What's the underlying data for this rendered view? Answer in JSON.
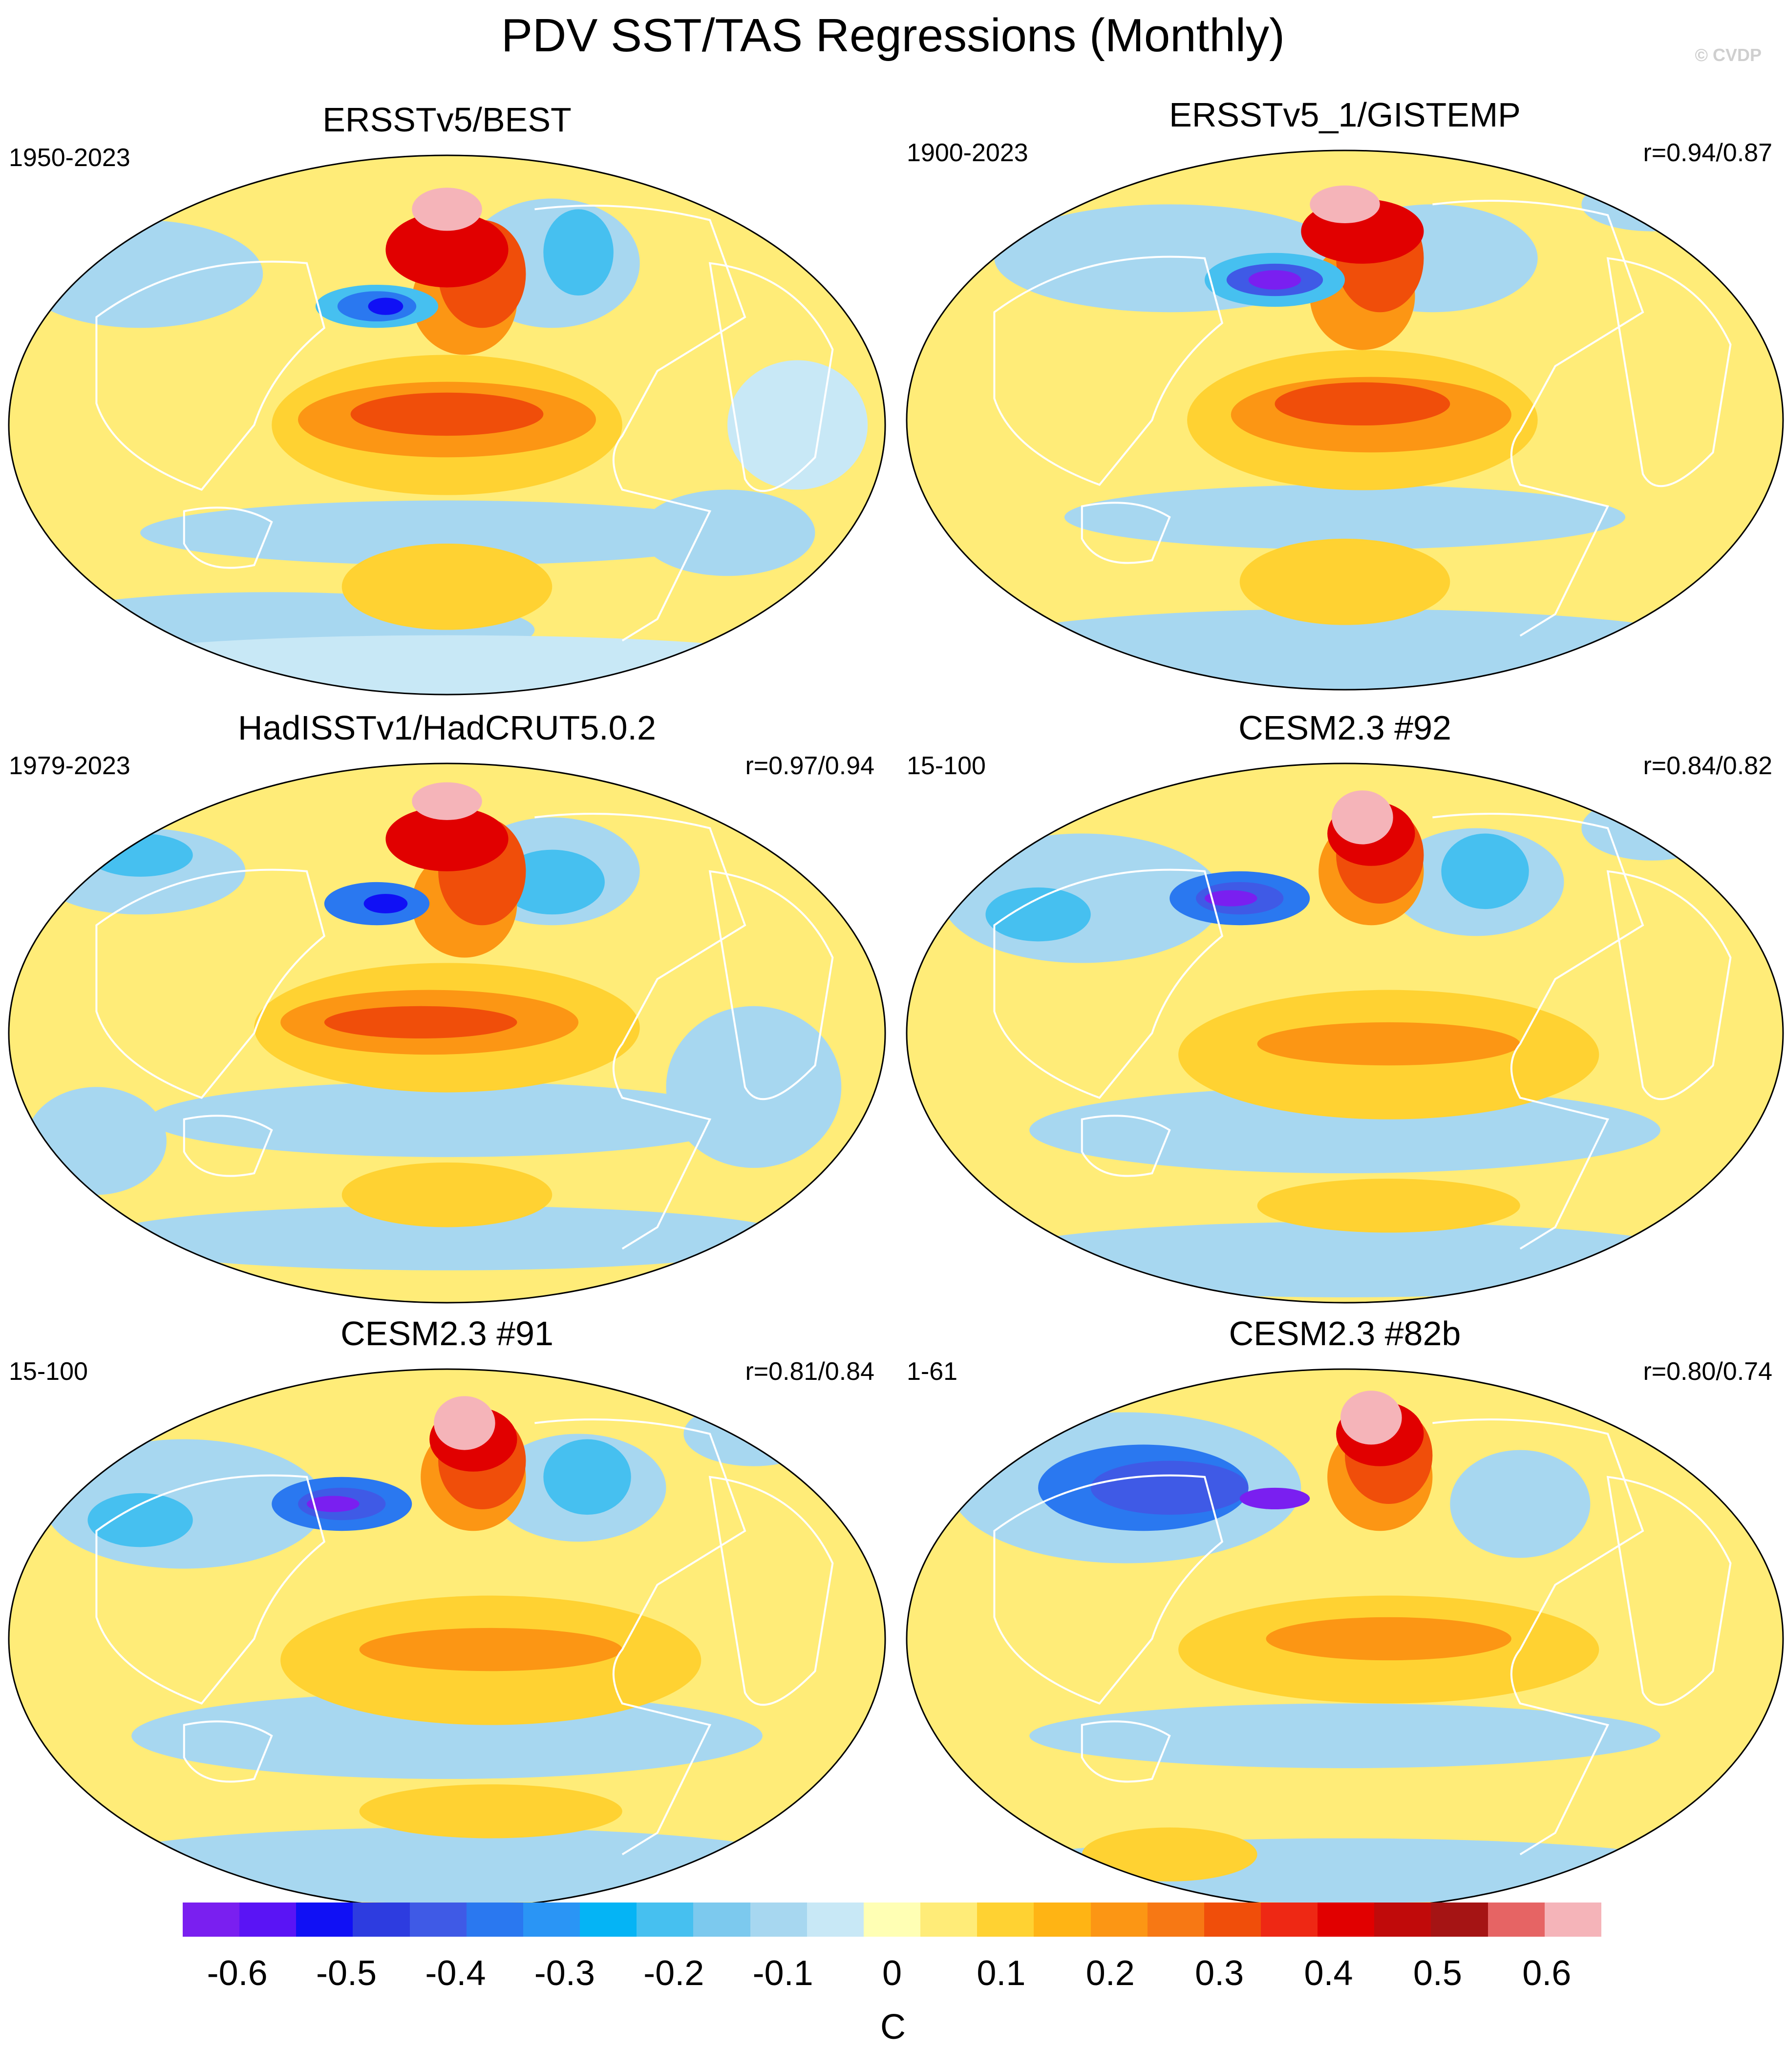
{
  "title": "PDV SST/TAS Regressions (Monthly)",
  "watermark": "© CVDP",
  "panels": [
    {
      "title": "ERSSTv5/BEST",
      "period": "1950-2023",
      "corr": "",
      "style": "obs1"
    },
    {
      "title": "ERSSTv5_1/GISTEMP",
      "period": "1900-2023",
      "corr": "r=0.94/0.87",
      "style": "obs2"
    },
    {
      "title": "HadISSTv1/HadCRUT5.0.2",
      "period": "1979-2023",
      "corr": "r=0.97/0.94",
      "style": "obs3"
    },
    {
      "title": "CESM2.3 #92",
      "period": "15-100",
      "corr": "r=0.84/0.82",
      "style": "model"
    },
    {
      "title": "CESM2.3 #91",
      "period": "15-100",
      "corr": "r=0.81/0.84",
      "style": "model"
    },
    {
      "title": "CESM2.3 #82b",
      "period": "1-61",
      "corr": "r=0.80/0.74",
      "style": "model2"
    }
  ],
  "colorbar": {
    "colors": [
      "#7a1ff0",
      "#5a14f5",
      "#1010f5",
      "#2d3ce0",
      "#3f5ae6",
      "#2a78f0",
      "#2a95f5",
      "#05b4f5",
      "#46c0f0",
      "#7cc9ee",
      "#a7d7f0",
      "#c8e8f6",
      "#ffffb4",
      "#ffec78",
      "#ffd232",
      "#ffb414",
      "#fc9614",
      "#f77814",
      "#f04e0a",
      "#ee2814",
      "#e10000",
      "#c00a0a",
      "#a51414",
      "#e66464",
      "#f5b4b9"
    ],
    "ticks": [
      "-0.6",
      "-0.5",
      "-0.4",
      "-0.3",
      "-0.2",
      "-0.1",
      "0",
      "0.1",
      "0.2",
      "0.3",
      "0.4",
      "0.5",
      "0.6"
    ],
    "tick_values": [
      -0.6,
      -0.5,
      -0.4,
      -0.3,
      -0.2,
      -0.1,
      0,
      0.1,
      0.2,
      0.3,
      0.4,
      0.5,
      0.6
    ],
    "range": [
      -0.65,
      0.65
    ],
    "units": "C"
  }
}
